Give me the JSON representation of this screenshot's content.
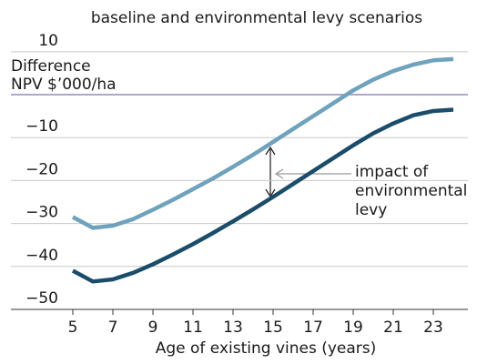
{
  "chart_data": {
    "type": "line",
    "title": "baseline and environmental levy scenarios",
    "ylabel": [
      "Difference",
      "NPV $’000/ha"
    ],
    "xlabel": "Age of existing vines (years)",
    "annotation": [
      "impact of",
      "environmental",
      "levy"
    ],
    "x": [
      5,
      6,
      7,
      8,
      9,
      10,
      11,
      12,
      13,
      14,
      15,
      16,
      17,
      18,
      19,
      20,
      21,
      22,
      23,
      24
    ],
    "series": [
      {
        "name": "baseline",
        "color": "#6fa2bd",
        "values": [
          -28.5,
          -31,
          -30.5,
          -29,
          -26.8,
          -24.5,
          -22,
          -19.5,
          -16.8,
          -14,
          -11,
          -8,
          -5,
          -2,
          1,
          3.5,
          5.5,
          7,
          8,
          8.3
        ]
      },
      {
        "name": "environmental levy",
        "color": "#1b4d6b",
        "values": [
          -41,
          -43.5,
          -43,
          -41.5,
          -39.5,
          -37.2,
          -34.8,
          -32.2,
          -29.5,
          -26.7,
          -23.8,
          -20.8,
          -17.8,
          -14.8,
          -11.8,
          -9,
          -6.7,
          -4.8,
          -3.8,
          -3.5
        ]
      }
    ],
    "xlim": [
      4.5,
      24.5
    ],
    "xticks": [
      5,
      7,
      9,
      11,
      13,
      15,
      17,
      19,
      21,
      23
    ],
    "ylim": [
      -50,
      12
    ],
    "yticks": [
      {
        "value": -50,
        "label": "−50"
      },
      {
        "value": -40,
        "label": "−40"
      },
      {
        "value": -30,
        "label": "−30"
      },
      {
        "value": -20,
        "label": "−20"
      },
      {
        "value": -10,
        "label": "−10"
      },
      10
    ],
    "zero_line_color": "#7d74b3",
    "grid": true
  }
}
